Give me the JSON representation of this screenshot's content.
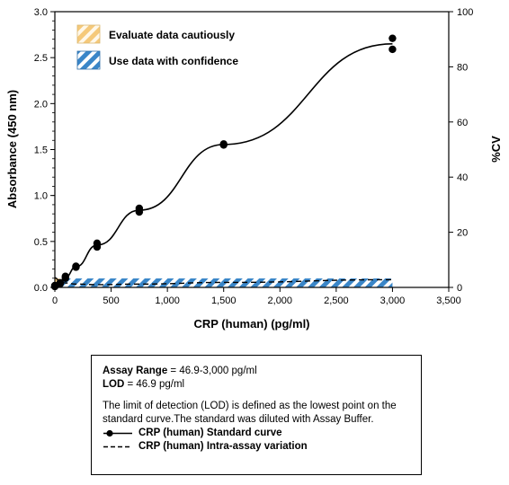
{
  "chart_data": {
    "type": "line",
    "xlabel": "CRP (human) (pg/ml)",
    "ylabel": "Absorbance (450 nm)",
    "y2label": "%CV",
    "xlim": [
      0,
      3500
    ],
    "ylim": [
      0,
      3.0
    ],
    "y2lim": [
      0,
      100
    ],
    "x_ticks": [
      "0",
      "500",
      "1,000",
      "1,500",
      "2,000",
      "2,500",
      "3,000",
      "3,500"
    ],
    "y_ticks": [
      "0.0",
      "0.5",
      "1.0",
      "1.5",
      "2.0",
      "2.5",
      "3.0"
    ],
    "y2_ticks": [
      "0",
      "20",
      "40",
      "60",
      "80",
      "100"
    ],
    "grid": false,
    "legend_position": "top-left",
    "legend": [
      {
        "label": "Evaluate data cautiously",
        "color": "#f5c97a",
        "pattern": "hatch"
      },
      {
        "label": "Use data with confidence",
        "color": "#3a86c8",
        "pattern": "hatch"
      }
    ],
    "shaded_regions": [
      {
        "label": "Evaluate data cautiously",
        "x": [
          0,
          46.9
        ],
        "color": "#f5c97a"
      },
      {
        "label": "Use data with confidence",
        "x": [
          46.9,
          3000
        ],
        "color": "#3a86c8"
      }
    ],
    "series": [
      {
        "name": "CRP (human) Standard curve",
        "axis": "left",
        "style": "solid-markers",
        "x": [
          0,
          0,
          46.9,
          46.9,
          93.8,
          93.8,
          187.5,
          187.5,
          375,
          375,
          750,
          750,
          1500,
          1500,
          3000,
          3000
        ],
        "y": [
          0.01,
          0.02,
          0.04,
          0.05,
          0.1,
          0.12,
          0.22,
          0.23,
          0.44,
          0.48,
          0.82,
          0.86,
          1.55,
          1.56,
          2.59,
          2.71
        ]
      },
      {
        "name": "CRP (human) Intra-assay variation",
        "axis": "right",
        "style": "dashed",
        "x": [
          0,
          46.9,
          93.8,
          187.5,
          375,
          750,
          1500,
          3000
        ],
        "y": [
          3.5,
          2.2,
          1.6,
          1.2,
          1.0,
          1.2,
          1.8,
          2.8
        ]
      }
    ]
  },
  "info_box": {
    "range_label": "Assay Range",
    "range_value": " = 46.9-3,000 pg/ml",
    "lod_label": "LOD",
    "lod_value": " = 46.9 pg/ml",
    "description": "The limit of detection (LOD) is defined as the lowest point on the standard curve.The standard was diluted with Assay Buffer.",
    "legend_solid": "CRP (human) Standard curve",
    "legend_dashed": "CRP (human) Intra-assay variation"
  }
}
